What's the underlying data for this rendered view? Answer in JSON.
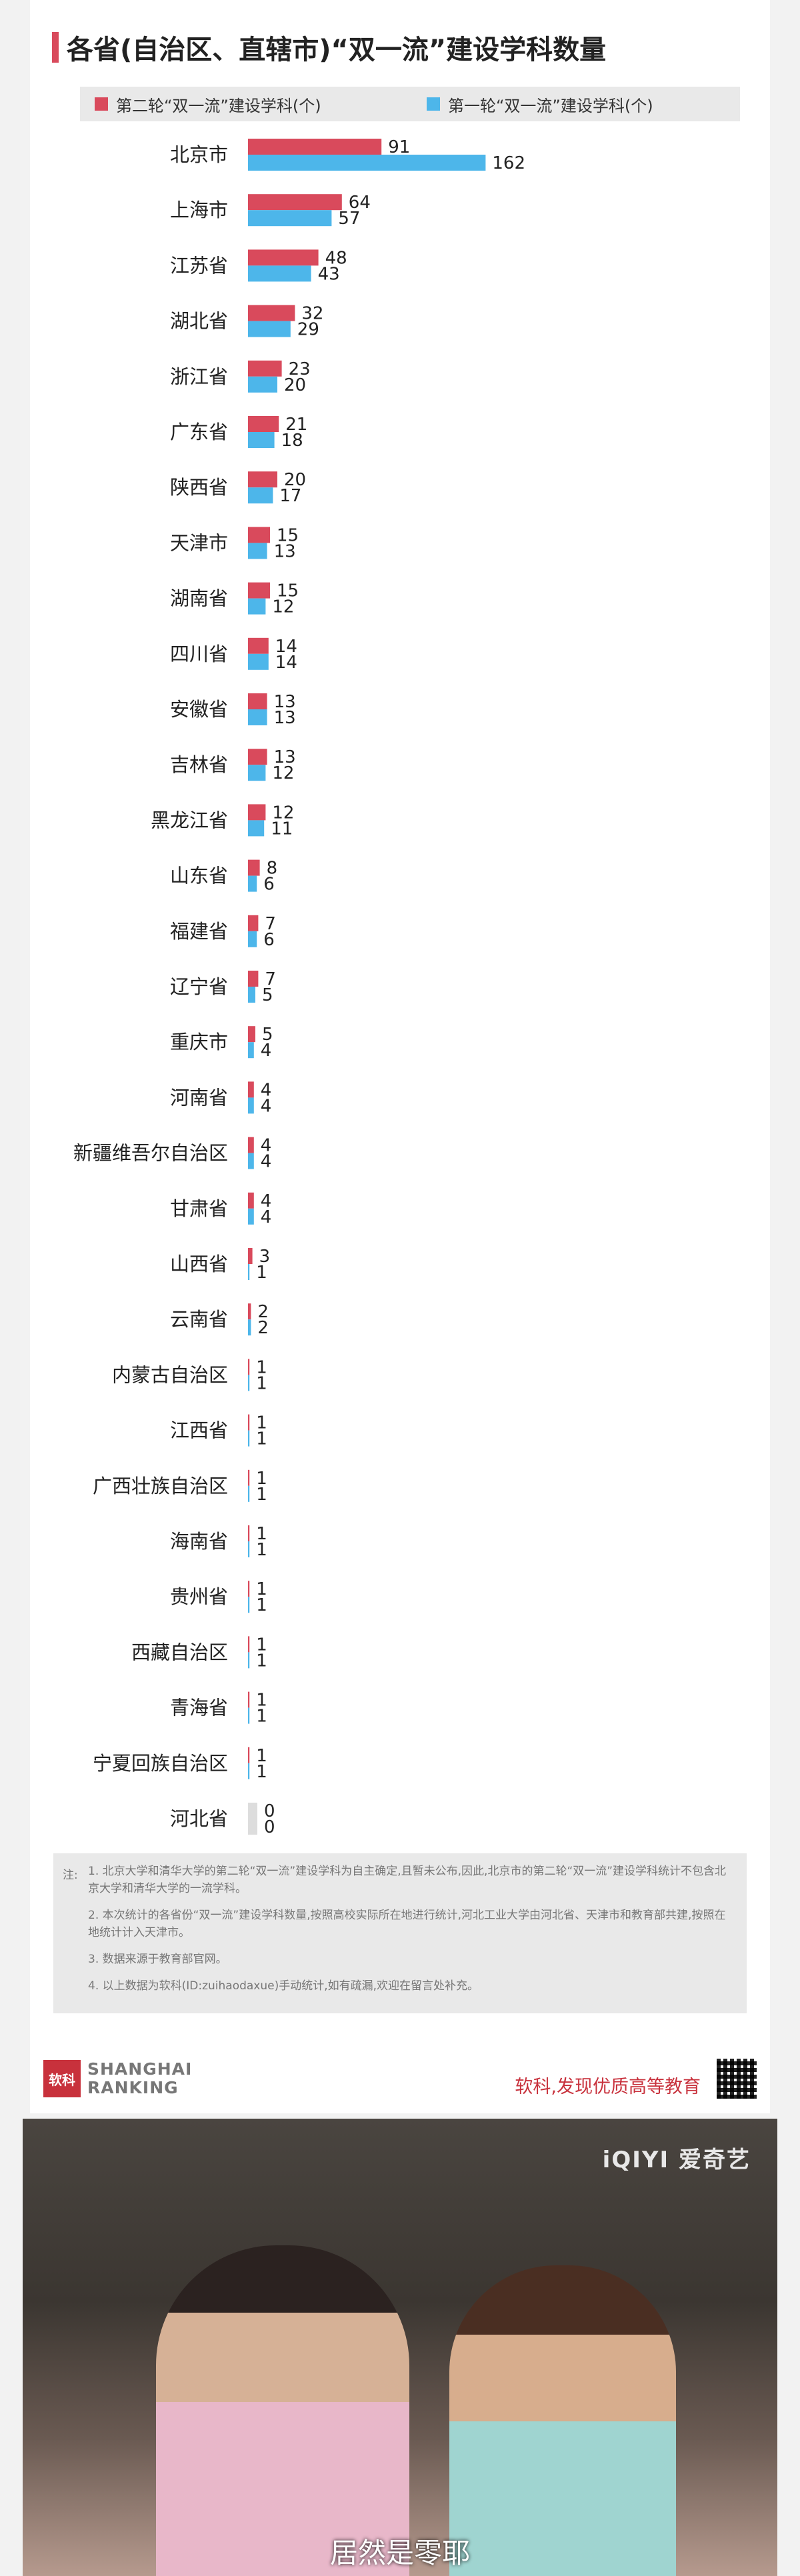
{
  "title": "各省(自治区、直辖市)“双一流”建设学科数量",
  "chart_data": {
    "type": "bar",
    "orientation": "horizontal",
    "title": "各省(自治区、直辖市)“双一流”建设学科数量",
    "categories": [
      "北京市",
      "上海市",
      "江苏省",
      "湖北省",
      "浙江省",
      "广东省",
      "陕西省",
      "天津市",
      "湖南省",
      "四川省",
      "安徽省",
      "吉林省",
      "黑龙江省",
      "山东省",
      "福建省",
      "辽宁省",
      "重庆市",
      "河南省",
      "新疆维吾尔自治区",
      "甘肃省",
      "山西省",
      "云南省",
      "内蒙古自治区",
      "江西省",
      "广西壮族自治区",
      "海南省",
      "贵州省",
      "西藏自治区",
      "青海省",
      "宁夏回族自治区",
      "河北省"
    ],
    "series": [
      {
        "name": "第二轮“双一流”建设学科(个)",
        "color": "#d94a5c",
        "values": [
          91,
          64,
          48,
          32,
          23,
          21,
          20,
          15,
          15,
          14,
          13,
          13,
          12,
          8,
          7,
          7,
          5,
          4,
          4,
          4,
          3,
          2,
          1,
          1,
          1,
          1,
          1,
          1,
          1,
          1,
          0
        ]
      },
      {
        "name": "第一轮“双一流”建设学科(个)",
        "color": "#4db6ea",
        "values": [
          162,
          57,
          43,
          29,
          20,
          18,
          17,
          13,
          12,
          14,
          13,
          12,
          11,
          6,
          6,
          5,
          4,
          4,
          4,
          4,
          1,
          2,
          1,
          1,
          1,
          1,
          1,
          1,
          1,
          1,
          0
        ]
      }
    ],
    "zero_color": "#dddddd",
    "legend": "top"
  },
  "notes": {
    "lead": "注:",
    "items": [
      "1. 北京大学和清华大学的第二轮“双一流”建设学科为自主确定,且暂未公布,因此,北京市的第二轮“双一流”建设学科统计不包含北京大学和清华大学的一流学科。",
      "2. 本次统计的各省份“双一流”建设学科数量,按照高校实际所在地进行统计,河北工业大学由河北省、天津市和教育部共建,按照在地统计计入天津市。",
      "3. 数据来源于教育部官网。",
      "4. 以上数据为软科(ID:zuihaodaxue)手动统计,如有疏漏,欢迎在留言处补充。"
    ]
  },
  "footer": {
    "logo_mark": "软科",
    "logo_line1": "SHANGHAI",
    "logo_line2": "RANKING",
    "slogan": "软科,发现优质高等教育"
  },
  "video": {
    "watermark": "iQIYI 爱奇艺",
    "subtitle": "居然是零耶"
  }
}
